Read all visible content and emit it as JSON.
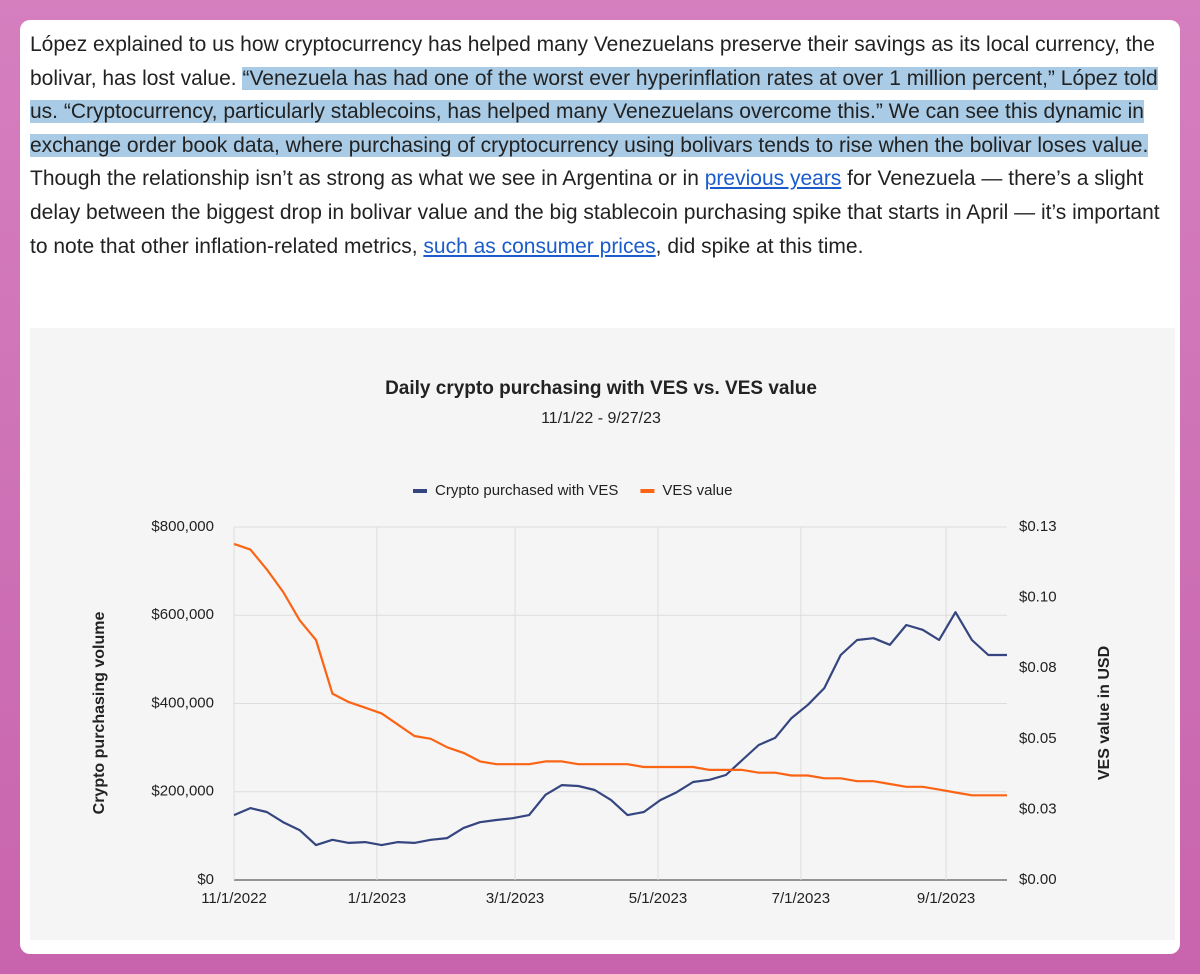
{
  "article": {
    "intro": "López explained to us how cryptocurrency has helped many Venezuelans preserve their savings as its local currency, the bolivar, has lost value.",
    "quote": "“Venezuela has had one of the worst ever hyperinflation rates at over 1 million percent,” López told us. “Cryptocurrency, particularly stablecoins, has helped many Venezuelans overcome this.” We can see this dynamic in exchange order book data, where purchasing of cryptocurrency using bolivars tends to rise when the bolivar loses value.",
    "text_1": "Though the relationship isn’t as strong as what we see in Argentina or in",
    "link_1": "previous years",
    "text_2": "for Venezuela — there’s a slight delay between the biggest drop in bolivar value and the big stablecoin purchasing spike that starts in April — it’s important to note that other inflation-related metrics,",
    "link_2": "such as consumer prices",
    "text_3": ", did spike at this time."
  },
  "chart_data": {
    "type": "line",
    "title": "Daily crypto purchasing with VES vs. VES value",
    "subtitle": "11/1/22 - 9/27/23",
    "y_label": "Crypto purchasing volume",
    "y2_label": "VES value in USD",
    "legend": "top",
    "grid": true,
    "x": [
      "2022-11-01",
      "2022-11-08",
      "2022-11-15",
      "2022-11-22",
      "2022-11-29",
      "2022-12-06",
      "2022-12-13",
      "2022-12-20",
      "2022-12-27",
      "2023-01-03",
      "2023-01-10",
      "2023-01-17",
      "2023-01-24",
      "2023-01-31",
      "2023-02-07",
      "2023-02-14",
      "2023-02-21",
      "2023-02-28",
      "2023-03-07",
      "2023-03-14",
      "2023-03-21",
      "2023-03-28",
      "2023-04-04",
      "2023-04-11",
      "2023-04-18",
      "2023-04-25",
      "2023-05-02",
      "2023-05-09",
      "2023-05-16",
      "2023-05-23",
      "2023-05-30",
      "2023-06-06",
      "2023-06-13",
      "2023-06-20",
      "2023-06-27",
      "2023-07-04",
      "2023-07-11",
      "2023-07-18",
      "2023-07-25",
      "2023-08-01",
      "2023-08-08",
      "2023-08-15",
      "2023-08-22",
      "2023-08-29",
      "2023-09-05",
      "2023-09-12",
      "2023-09-19",
      "2023-09-27"
    ],
    "xlim": [
      "2022-11-01",
      "2023-09-27"
    ],
    "xticks": [
      {
        "value": "2022-11-01",
        "label": "11/1/2022"
      },
      {
        "value": "2023-01-01",
        "label": "1/1/2023"
      },
      {
        "value": "2023-03-01",
        "label": "3/1/2023"
      },
      {
        "value": "2023-05-01",
        "label": "5/1/2023"
      },
      {
        "value": "2023-07-01",
        "label": "7/1/2023"
      },
      {
        "value": "2023-09-01",
        "label": "9/1/2023"
      }
    ],
    "ylim": [
      0,
      800000
    ],
    "yticks": [
      {
        "value": 0,
        "label": "$0"
      },
      {
        "value": 200000,
        "label": "$200,000"
      },
      {
        "value": 400000,
        "label": "$400,000"
      },
      {
        "value": 600000,
        "label": "$600,000"
      },
      {
        "value": 800000,
        "label": "$800,000"
      }
    ],
    "y2lim": [
      0,
      0.125
    ],
    "y2ticks": [
      {
        "value": 0,
        "label": "$0.00"
      },
      {
        "value": 0.025,
        "label": "$0.03"
      },
      {
        "value": 0.05,
        "label": "$0.05"
      },
      {
        "value": 0.075,
        "label": "$0.08"
      },
      {
        "value": 0.1,
        "label": "$0.10"
      },
      {
        "value": 0.125,
        "label": "$0.13"
      }
    ],
    "series": [
      {
        "name": "Crypto purchased with VES",
        "color": "#34457f",
        "values": [
          147000,
          163000,
          154000,
          131000,
          113000,
          79000,
          91000,
          84000,
          86000,
          79000,
          86000,
          84000,
          91000,
          95000,
          118000,
          131000,
          136000,
          140000,
          147000,
          193000,
          215000,
          213000,
          204000,
          181000,
          147000,
          154000,
          181000,
          199000,
          222000,
          227000,
          238000,
          272000,
          306000,
          322000,
          367000,
          397000,
          435000,
          510000,
          544000,
          548000,
          533000,
          578000,
          567000,
          544000,
          607000,
          544000,
          510000,
          510000
        ]
      },
      {
        "name": "VES value",
        "color": "#fa6414",
        "axis": "y2",
        "values": [
          0.119,
          0.117,
          0.11,
          0.102,
          0.092,
          0.085,
          0.066,
          0.063,
          0.061,
          0.059,
          0.055,
          0.051,
          0.05,
          0.047,
          0.045,
          0.042,
          0.041,
          0.041,
          0.041,
          0.042,
          0.042,
          0.041,
          0.041,
          0.041,
          0.041,
          0.04,
          0.04,
          0.04,
          0.04,
          0.039,
          0.039,
          0.039,
          0.038,
          0.038,
          0.037,
          0.037,
          0.036,
          0.036,
          0.035,
          0.035,
          0.034,
          0.033,
          0.033,
          0.032,
          0.031,
          0.03,
          0.03,
          0.03
        ]
      }
    ]
  }
}
